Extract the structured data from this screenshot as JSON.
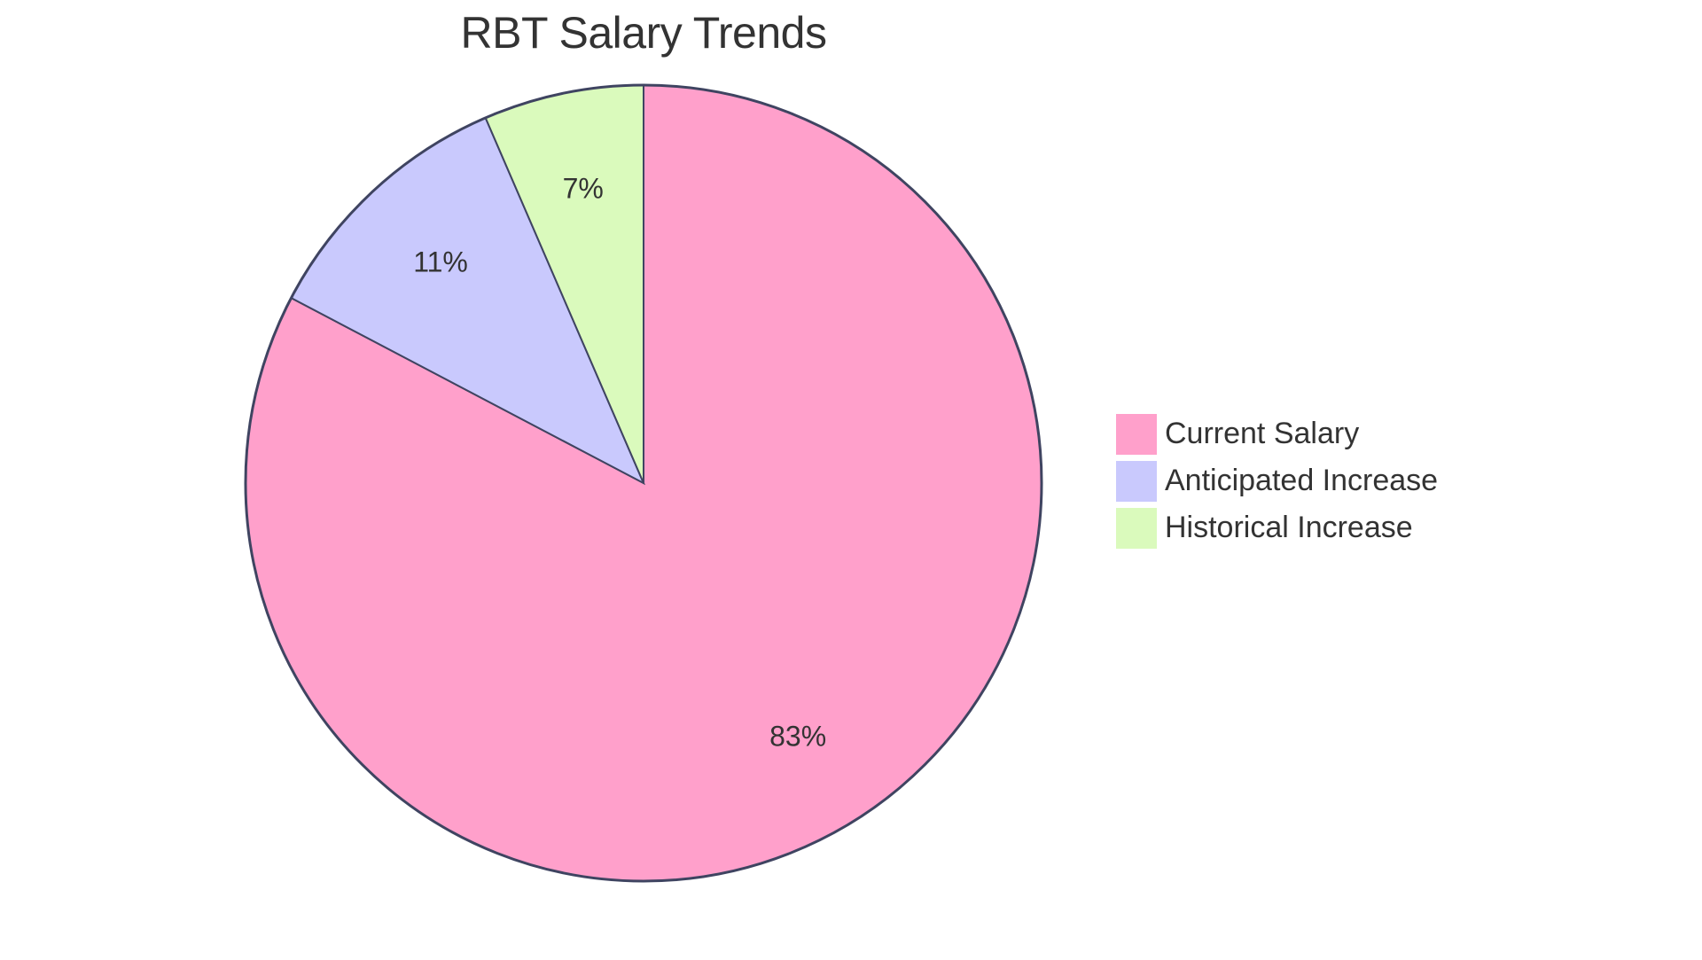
{
  "chart": {
    "title": "RBT Salary Trends",
    "stroke_color": "#3f4461",
    "slices": [
      {
        "name": "Current Salary",
        "value": 82.7,
        "label": "83%",
        "color": "#ffa0cb"
      },
      {
        "name": "Anticipated Increase",
        "value": 10.8,
        "label": "11%",
        "color": "#c9c9fd"
      },
      {
        "name": "Historical Increase",
        "value": 6.5,
        "label": "7%",
        "color": "#dafabc"
      }
    ]
  },
  "legend": {
    "items": [
      {
        "label": "Current Salary",
        "color": "#ffa0cb"
      },
      {
        "label": "Anticipated Increase",
        "color": "#c9c9fd"
      },
      {
        "label": "Historical Increase",
        "color": "#dafabc"
      }
    ]
  },
  "chart_data": {
    "type": "pie",
    "title": "RBT Salary Trends",
    "categories": [
      "Current Salary",
      "Anticipated Increase",
      "Historical Increase"
    ],
    "values": [
      82.7,
      10.8,
      6.5
    ],
    "labels": [
      "83%",
      "11%",
      "7%"
    ],
    "colors": [
      "#ffa0cb",
      "#c9c9fd",
      "#dafabc"
    ],
    "legend_position": "right"
  }
}
